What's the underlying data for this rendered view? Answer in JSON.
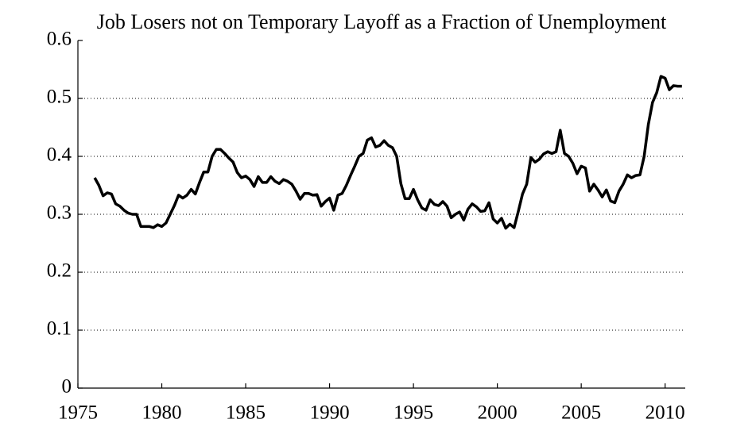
{
  "chart_data": {
    "type": "line",
    "title": "Job Losers not on Temporary Layoff as a Fraction of Unemployment",
    "x": [
      1976,
      1976.25,
      1976.5,
      1976.75,
      1977,
      1977.25,
      1977.5,
      1977.75,
      1978,
      1978.25,
      1978.5,
      1978.75,
      1979,
      1979.25,
      1979.5,
      1979.75,
      1980,
      1980.25,
      1980.5,
      1980.75,
      1981,
      1981.25,
      1981.5,
      1981.75,
      1982,
      1982.25,
      1982.5,
      1982.75,
      1983,
      1983.25,
      1983.5,
      1983.75,
      1984,
      1984.25,
      1984.5,
      1984.75,
      1985,
      1985.25,
      1985.5,
      1985.75,
      1986,
      1986.25,
      1986.5,
      1986.75,
      1987,
      1987.25,
      1987.5,
      1987.75,
      1988,
      1988.25,
      1988.5,
      1988.75,
      1989,
      1989.25,
      1989.5,
      1989.75,
      1990,
      1990.25,
      1990.5,
      1990.75,
      1991,
      1991.25,
      1991.5,
      1991.75,
      1992,
      1992.25,
      1992.5,
      1992.75,
      1993,
      1993.25,
      1993.5,
      1993.75,
      1994,
      1994.25,
      1994.5,
      1994.75,
      1995,
      1995.25,
      1995.5,
      1995.75,
      1996,
      1996.25,
      1996.5,
      1996.75,
      1997,
      1997.25,
      1997.5,
      1997.75,
      1998,
      1998.25,
      1998.5,
      1998.75,
      1999,
      1999.25,
      1999.5,
      1999.75,
      2000,
      2000.25,
      2000.5,
      2000.75,
      2001,
      2001.25,
      2001.5,
      2001.75,
      2002,
      2002.25,
      2002.5,
      2002.75,
      2003,
      2003.25,
      2003.5,
      2003.75,
      2004,
      2004.25,
      2004.5,
      2004.75,
      2005,
      2005.25,
      2005.5,
      2005.75,
      2006,
      2006.25,
      2006.5,
      2006.75,
      2007,
      2007.25,
      2007.5,
      2007.75,
      2008,
      2008.25,
      2008.5,
      2008.75,
      2009,
      2009.25,
      2009.5,
      2009.75,
      2010,
      2010.25,
      2010.5,
      2010.75,
      2011
    ],
    "series": [
      {
        "color": "#000000",
        "values": [
          0.363,
          0.35,
          0.332,
          0.337,
          0.335,
          0.318,
          0.314,
          0.307,
          0.302,
          0.3,
          0.3,
          0.279,
          0.279,
          0.279,
          0.277,
          0.282,
          0.279,
          0.285,
          0.3,
          0.315,
          0.333,
          0.328,
          0.333,
          0.343,
          0.335,
          0.355,
          0.373,
          0.373,
          0.4,
          0.412,
          0.412,
          0.405,
          0.397,
          0.39,
          0.372,
          0.363,
          0.366,
          0.36,
          0.348,
          0.365,
          0.355,
          0.355,
          0.365,
          0.357,
          0.353,
          0.36,
          0.357,
          0.352,
          0.34,
          0.326,
          0.336,
          0.336,
          0.333,
          0.334,
          0.314,
          0.322,
          0.328,
          0.307,
          0.333,
          0.336,
          0.35,
          0.367,
          0.383,
          0.4,
          0.405,
          0.428,
          0.432,
          0.416,
          0.419,
          0.427,
          0.419,
          0.415,
          0.4,
          0.353,
          0.327,
          0.327,
          0.343,
          0.325,
          0.311,
          0.307,
          0.325,
          0.317,
          0.315,
          0.322,
          0.314,
          0.294,
          0.3,
          0.304,
          0.29,
          0.309,
          0.318,
          0.313,
          0.305,
          0.306,
          0.32,
          0.292,
          0.285,
          0.293,
          0.276,
          0.283,
          0.277,
          0.305,
          0.335,
          0.352,
          0.398,
          0.39,
          0.395,
          0.404,
          0.408,
          0.405,
          0.408,
          0.445,
          0.405,
          0.4,
          0.388,
          0.37,
          0.383,
          0.38,
          0.34,
          0.352,
          0.342,
          0.33,
          0.342,
          0.323,
          0.32,
          0.34,
          0.352,
          0.368,
          0.363,
          0.367,
          0.368,
          0.4,
          0.455,
          0.493,
          0.51,
          0.538,
          0.535,
          0.515,
          0.522,
          0.521,
          0.521
        ]
      }
    ],
    "xlim": [
      1975,
      2011.2
    ],
    "xticks": [
      1975,
      1980,
      1985,
      1990,
      1995,
      2000,
      2005,
      2010
    ],
    "ylim": [
      0,
      0.6
    ],
    "yticks": [
      0,
      0.1,
      0.2,
      0.3,
      0.4,
      0.5,
      0.6
    ],
    "grid": true
  }
}
